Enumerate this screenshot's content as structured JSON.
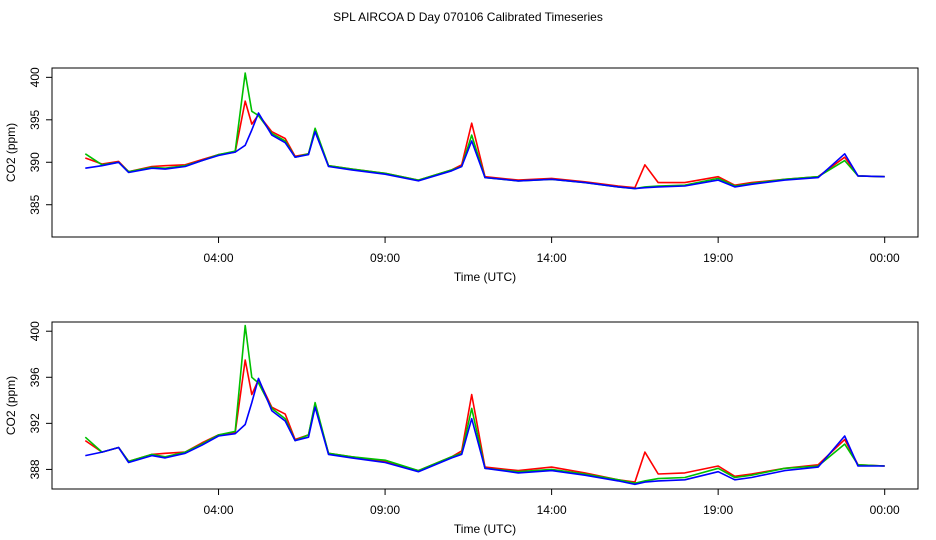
{
  "title": "SPL AIRCOA D  Day 070106  Calibrated Timeseries",
  "chart_data": [
    {
      "type": "line",
      "x_label": "Time (UTC)",
      "y_label": "CO2 (ppm)",
      "xlim": [
        -1,
        25
      ],
      "ylim": [
        381.2,
        401.1
      ],
      "xticks": [
        {
          "value": 4,
          "label": "04:00"
        },
        {
          "value": 9,
          "label": "09:00"
        },
        {
          "value": 14,
          "label": "14:00"
        },
        {
          "value": 19,
          "label": "19:00"
        },
        {
          "value": 24,
          "label": "00:00"
        }
      ],
      "yticks": [
        385,
        390,
        395,
        400
      ],
      "x": [
        0,
        0.5,
        1,
        1.3,
        2,
        2.4,
        3,
        3.5,
        4,
        4.5,
        4.8,
        5,
        5.2,
        5.6,
        6,
        6.3,
        6.7,
        6.9,
        7.3,
        8,
        9,
        10,
        11,
        11.3,
        11.6,
        12,
        13,
        14,
        15,
        16,
        16.5,
        16.8,
        17.2,
        18,
        19,
        19.5,
        20,
        21,
        22,
        22.8,
        23.2,
        24
      ],
      "series": [
        {
          "color": "#ff0000",
          "values": [
            390.5,
            389.8,
            390.1,
            388.9,
            389.5,
            389.6,
            389.7,
            390.3,
            390.9,
            391.2,
            397.2,
            394.5,
            395.6,
            393.6,
            392.8,
            390.7,
            391.0,
            393.7,
            389.6,
            389.2,
            388.7,
            387.9,
            389.1,
            389.7,
            394.6,
            388.3,
            387.9,
            388.1,
            387.7,
            387.2,
            387.0,
            389.7,
            387.6,
            387.6,
            388.3,
            387.3,
            387.6,
            388.0,
            388.3,
            390.6,
            388.4,
            388.3
          ]
        },
        {
          "color": "#00c000",
          "values": [
            391.0,
            389.7,
            390.0,
            388.9,
            389.4,
            389.3,
            389.6,
            390.2,
            390.9,
            391.3,
            400.5,
            396.0,
            395.5,
            393.4,
            392.5,
            390.6,
            391.0,
            394.0,
            389.6,
            389.2,
            388.7,
            387.9,
            389.1,
            389.5,
            393.2,
            388.2,
            387.8,
            388.0,
            387.6,
            387.1,
            386.9,
            387.1,
            387.2,
            387.3,
            388.1,
            387.2,
            387.5,
            388.0,
            388.3,
            390.2,
            388.4,
            388.3
          ]
        },
        {
          "color": "#0000ff",
          "values": [
            389.3,
            389.6,
            390.0,
            388.8,
            389.3,
            389.2,
            389.5,
            390.2,
            390.8,
            391.2,
            392.0,
            393.8,
            395.8,
            393.2,
            392.3,
            390.6,
            390.9,
            393.6,
            389.5,
            389.1,
            388.6,
            387.8,
            389.0,
            389.5,
            392.5,
            388.2,
            387.8,
            388.0,
            387.6,
            387.1,
            386.9,
            387.0,
            387.1,
            387.2,
            387.9,
            387.1,
            387.4,
            387.9,
            388.2,
            391.0,
            388.4,
            388.3
          ]
        }
      ]
    },
    {
      "type": "line",
      "x_label": "Time (UTC)",
      "y_label": "CO2 (ppm)",
      "xlim": [
        -1,
        25
      ],
      "ylim": [
        386.3,
        400.8
      ],
      "xticks": [
        {
          "value": 4,
          "label": "04:00"
        },
        {
          "value": 9,
          "label": "09:00"
        },
        {
          "value": 14,
          "label": "14:00"
        },
        {
          "value": 19,
          "label": "19:00"
        },
        {
          "value": 24,
          "label": "00:00"
        }
      ],
      "yticks": [
        388,
        392,
        396,
        400
      ],
      "x": [
        0,
        0.5,
        1,
        1.3,
        2,
        2.4,
        3,
        3.5,
        4,
        4.5,
        4.8,
        5,
        5.2,
        5.6,
        6,
        6.3,
        6.7,
        6.9,
        7.3,
        8,
        9,
        10,
        11,
        11.3,
        11.6,
        12,
        13,
        14,
        15,
        16,
        16.5,
        16.8,
        17.2,
        18,
        19,
        19.5,
        20,
        21,
        22,
        22.8,
        23.2,
        24
      ],
      "series": [
        {
          "color": "#ff0000",
          "values": [
            390.5,
            389.5,
            389.9,
            388.7,
            389.3,
            389.4,
            389.5,
            390.3,
            391.0,
            391.2,
            397.5,
            394.5,
            395.8,
            393.4,
            392.8,
            390.6,
            391.0,
            393.6,
            389.4,
            389.1,
            388.7,
            387.9,
            389.1,
            389.6,
            394.5,
            388.2,
            387.9,
            388.2,
            387.7,
            387.1,
            386.9,
            389.5,
            387.6,
            387.7,
            388.3,
            387.4,
            387.6,
            388.1,
            388.4,
            390.6,
            388.4,
            388.3
          ]
        },
        {
          "color": "#00c000",
          "values": [
            390.8,
            389.5,
            389.9,
            388.7,
            389.3,
            389.1,
            389.5,
            390.2,
            391.0,
            391.3,
            400.5,
            396.0,
            395.5,
            393.3,
            392.4,
            390.5,
            391.0,
            393.8,
            389.4,
            389.1,
            388.8,
            387.9,
            389.1,
            389.4,
            393.3,
            388.1,
            387.8,
            388.0,
            387.6,
            387.1,
            386.8,
            387.0,
            387.2,
            387.3,
            388.1,
            387.3,
            387.5,
            388.1,
            388.3,
            390.2,
            388.4,
            388.3
          ]
        },
        {
          "color": "#0000ff",
          "values": [
            389.2,
            389.5,
            389.9,
            388.6,
            389.2,
            389.0,
            389.4,
            390.1,
            390.9,
            391.1,
            391.9,
            393.8,
            395.9,
            393.1,
            392.2,
            390.5,
            390.8,
            393.4,
            389.3,
            389.0,
            388.6,
            387.8,
            389.0,
            389.3,
            392.4,
            388.1,
            387.7,
            387.9,
            387.5,
            387.0,
            386.7,
            386.9,
            387.0,
            387.1,
            387.8,
            387.1,
            387.3,
            387.9,
            388.2,
            390.9,
            388.3,
            388.3
          ]
        }
      ]
    }
  ]
}
